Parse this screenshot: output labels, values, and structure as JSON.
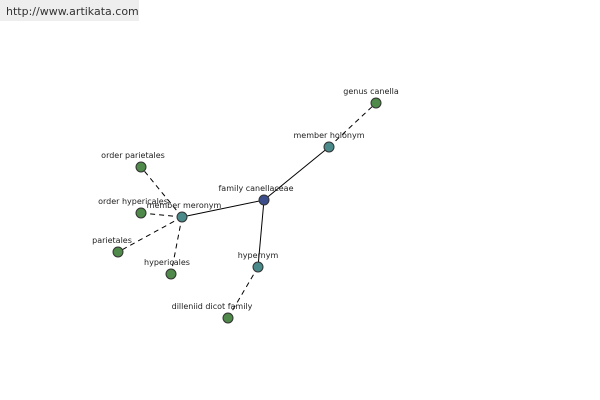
{
  "header": {
    "url": "http://www.artikata.com"
  },
  "nodes": [
    {
      "label": "family canellaceae"
    },
    {
      "label": "member holonym"
    },
    {
      "label": "genus canella"
    },
    {
      "label": "member meronym"
    },
    {
      "label": "hypernym"
    },
    {
      "label": "dilleniid dicot family"
    },
    {
      "label": "order parietales"
    },
    {
      "label": "order hypericales"
    },
    {
      "label": "parietales"
    },
    {
      "label": "hypericales"
    }
  ]
}
